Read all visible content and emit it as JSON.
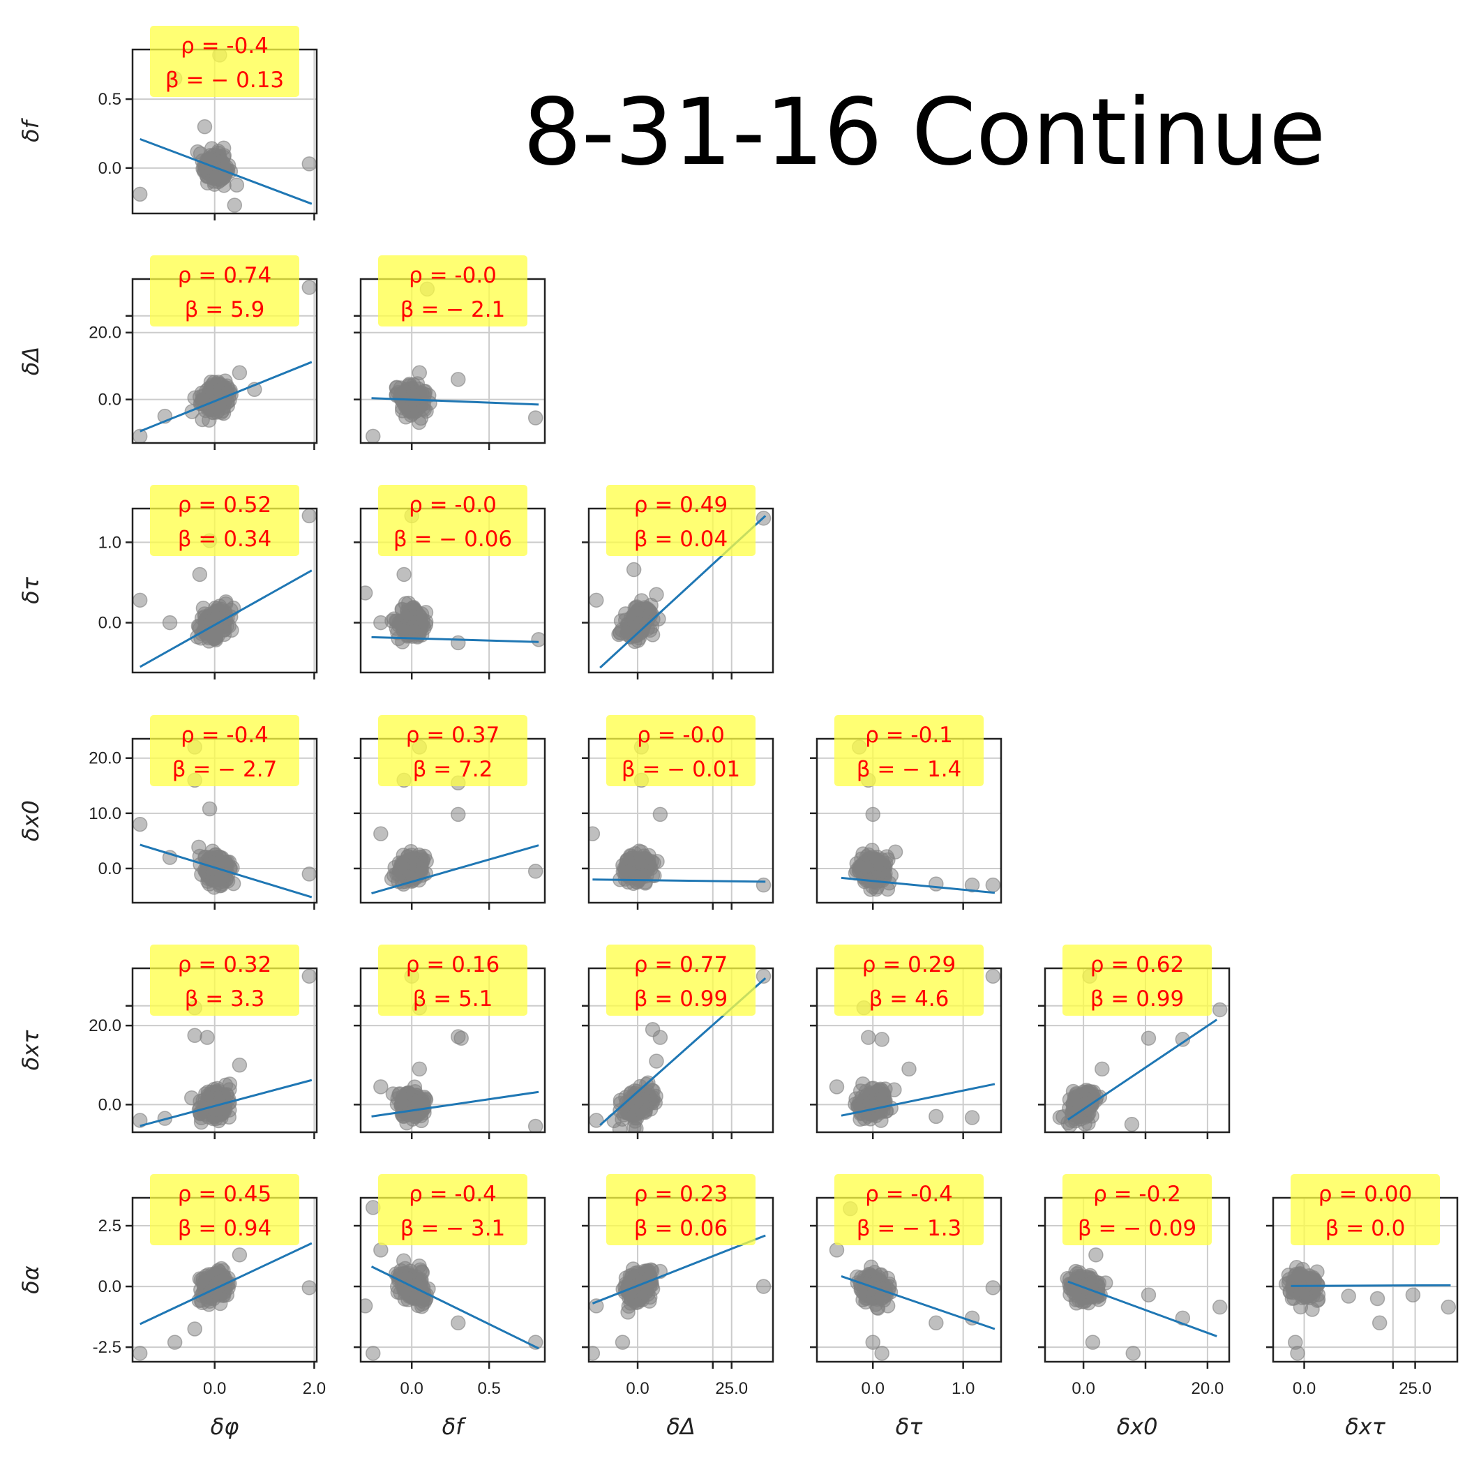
{
  "title": "8-31-16 Continue",
  "chart_data": {
    "type": "scatter",
    "title": "8-31-16 Continue",
    "variables": [
      "δφ",
      "δf",
      "δΔ",
      "δτ",
      "δx0",
      "δxτ",
      "δα"
    ],
    "colors": {
      "points": "#808080",
      "fit_line": "#1f77b4",
      "annotation_bg": "#ffff44",
      "annotation_text": "#ff0000",
      "grid": "#cccccc"
    },
    "grid": true,
    "axes": [
      {
        "name": "δφ",
        "label": "δφ",
        "range": [
          -1.65,
          2.05
        ],
        "ticks": [
          0.0,
          2.0
        ],
        "tick_labels": [
          "0.0",
          "2.0"
        ]
      },
      {
        "name": "δf",
        "label": "δf",
        "range": [
          -0.33,
          0.86
        ],
        "ticks": [
          0.0,
          0.5
        ],
        "tick_labels": [
          "0.0",
          "0.5"
        ]
      },
      {
        "name": "δΔ",
        "label": "δΔ",
        "range": [
          -13.0,
          36.0
        ],
        "ticks": [
          0.0,
          20.0,
          25.0
        ],
        "tick_labels": [
          "0.0",
          "20.0",
          "25.0"
        ]
      },
      {
        "name": "δτ",
        "label": "δτ",
        "range": [
          -0.62,
          1.42
        ],
        "ticks": [
          0.0,
          1.0
        ],
        "tick_labels": [
          "0.0",
          "1.0"
        ]
      },
      {
        "name": "δx0",
        "label": "δx0",
        "range": [
          -6.2,
          23.5
        ],
        "ticks": [
          0.0,
          10.0,
          20.0
        ],
        "tick_labels": [
          "0.0",
          "10.0",
          "20.0"
        ]
      },
      {
        "name": "δxτ",
        "label": "δxτ",
        "range": [
          -7.0,
          34.5
        ],
        "ticks": [
          0.0,
          20.0,
          25.0
        ],
        "tick_labels": [
          "0.0",
          "20.0",
          "25.0"
        ]
      },
      {
        "name": "δα",
        "label": "δα",
        "range": [
          -3.1,
          3.65
        ],
        "ticks": [
          -2.5,
          0.0,
          2.5
        ],
        "tick_labels": [
          "-2.5",
          "0.0",
          "2.5"
        ]
      }
    ],
    "y_tick_labels": {
      "δf": [
        "0.0",
        "0.5"
      ],
      "δΔ": [
        "0.0",
        "20.0"
      ],
      "δτ": [
        "0.0",
        "1.0"
      ],
      "δx0": [
        "0.0",
        "10.0",
        "20.0"
      ],
      "δxτ": [
        "0.0",
        "20.0"
      ],
      "δα": [
        "-2.5",
        "0.0",
        "2.5"
      ]
    },
    "x_tick_labels": {
      "δφ": [
        "0.0",
        "2.0"
      ],
      "δf": [
        "0.0",
        "0.5"
      ],
      "δΔ": [
        "0.0",
        "25.0"
      ],
      "δτ": [
        "0.0",
        "1.0"
      ],
      "δx0": [
        "0.0",
        "20.0"
      ],
      "δxτ": [
        "0.0",
        "25.0"
      ]
    },
    "panels": [
      {
        "x": "δφ",
        "y": "δf",
        "rho": "-0.4",
        "beta": "-0.13",
        "fit": [
          [
            -1.5,
            0.21
          ],
          [
            1.95,
            -0.26
          ]
        ],
        "outliers": [
          [
            -1.5,
            -0.19
          ],
          [
            1.9,
            0.03
          ],
          [
            -0.8,
            0.65
          ],
          [
            0.1,
            0.82
          ],
          [
            0.4,
            -0.27
          ],
          [
            -0.2,
            0.3
          ]
        ]
      },
      {
        "x": "δφ",
        "y": "δΔ",
        "rho": "0.74",
        "beta": "5.9",
        "fit": [
          [
            -1.5,
            -9.5
          ],
          [
            1.95,
            11.2
          ]
        ],
        "outliers": [
          [
            1.9,
            33.5
          ],
          [
            -1.5,
            -11
          ],
          [
            -1.0,
            -5
          ],
          [
            0.5,
            8
          ],
          [
            0.8,
            3
          ]
        ]
      },
      {
        "x": "δf",
        "y": "δΔ",
        "rho": "-0.0",
        "beta": "-2.1",
        "fit": [
          [
            -0.26,
            0.4
          ],
          [
            0.82,
            -1.5
          ]
        ],
        "outliers": [
          [
            -0.25,
            -11
          ],
          [
            0.8,
            -5.5
          ],
          [
            0.1,
            33
          ],
          [
            0.3,
            6
          ],
          [
            0.05,
            8
          ]
        ]
      },
      {
        "x": "δφ",
        "y": "δτ",
        "rho": "0.52",
        "beta": "0.34",
        "fit": [
          [
            -1.5,
            -0.55
          ],
          [
            1.95,
            0.65
          ]
        ],
        "outliers": [
          [
            1.9,
            1.33
          ],
          [
            -1.5,
            0.28
          ],
          [
            -0.9,
            0.0
          ],
          [
            -0.1,
            1.02
          ],
          [
            -0.3,
            0.6
          ]
        ]
      },
      {
        "x": "δf",
        "y": "δτ",
        "rho": "-0.0",
        "beta": "-0.06",
        "fit": [
          [
            -0.26,
            -0.18
          ],
          [
            0.82,
            -0.24
          ]
        ],
        "outliers": [
          [
            0.82,
            -0.21
          ],
          [
            0.0,
            1.33
          ],
          [
            -0.3,
            0.37
          ],
          [
            -0.2,
            0.0
          ],
          [
            0.3,
            -0.25
          ],
          [
            -0.05,
            0.6
          ]
        ]
      },
      {
        "x": "δΔ",
        "y": "δτ",
        "rho": "0.49",
        "beta": "0.04",
        "fit": [
          [
            -10,
            -0.56
          ],
          [
            34,
            1.33
          ]
        ],
        "outliers": [
          [
            33.5,
            1.3
          ],
          [
            -11,
            0.28
          ],
          [
            -1,
            0.66
          ],
          [
            4,
            -0.15
          ],
          [
            5,
            0.35
          ]
        ]
      },
      {
        "x": "δφ",
        "y": "δx0",
        "rho": "-0.4",
        "beta": "-2.7",
        "fit": [
          [
            -1.5,
            4.3
          ],
          [
            1.95,
            -5.2
          ]
        ],
        "outliers": [
          [
            -1.5,
            8
          ],
          [
            1.9,
            -1
          ],
          [
            -0.4,
            22
          ],
          [
            -0.4,
            16
          ],
          [
            -0.1,
            10.8
          ],
          [
            -0.9,
            2
          ]
        ]
      },
      {
        "x": "δf",
        "y": "δx0",
        "rho": "0.37",
        "beta": "7.2",
        "fit": [
          [
            -0.26,
            -4.5
          ],
          [
            0.82,
            4.2
          ]
        ],
        "outliers": [
          [
            0.05,
            22
          ],
          [
            -0.05,
            16
          ],
          [
            0.3,
            15.5
          ],
          [
            0.3,
            9.8
          ],
          [
            -0.2,
            6.3
          ],
          [
            0.8,
            -0.5
          ]
        ]
      },
      {
        "x": "δΔ",
        "y": "δx0",
        "rho": "-0.0",
        "beta": "-0.01",
        "fit": [
          [
            -12,
            -2.0
          ],
          [
            34,
            -2.4
          ]
        ],
        "outliers": [
          [
            -12,
            6.3
          ],
          [
            6,
            9.8
          ],
          [
            1,
            22
          ],
          [
            1,
            16
          ],
          [
            33.5,
            -3
          ],
          [
            1,
            3
          ]
        ]
      },
      {
        "x": "δτ",
        "y": "δx0",
        "rho": "-0.1",
        "beta": "-1.4",
        "fit": [
          [
            -0.35,
            -1.7
          ],
          [
            1.35,
            -4.4
          ]
        ],
        "outliers": [
          [
            -0.15,
            22
          ],
          [
            -0.05,
            16
          ],
          [
            0.0,
            9.8
          ],
          [
            0.25,
            3
          ],
          [
            1.1,
            -3
          ],
          [
            1.33,
            -3
          ],
          [
            0.7,
            -2.8
          ]
        ]
      },
      {
        "x": "δφ",
        "y": "δxτ",
        "rho": "0.32",
        "beta": "3.3",
        "fit": [
          [
            -1.5,
            -5.4
          ],
          [
            1.95,
            6.2
          ]
        ],
        "outliers": [
          [
            1.9,
            32.5
          ],
          [
            -0.4,
            24.5
          ],
          [
            -0.4,
            17.5
          ],
          [
            -0.15,
            17
          ],
          [
            0.5,
            10
          ],
          [
            -1.5,
            -4
          ],
          [
            -1.0,
            -3.5
          ]
        ]
      },
      {
        "x": "δf",
        "y": "δxτ",
        "rho": "0.16",
        "beta": "5.1",
        "fit": [
          [
            -0.26,
            -3.0
          ],
          [
            0.82,
            3.2
          ]
        ],
        "outliers": [
          [
            0.0,
            32.5
          ],
          [
            0.05,
            24.5
          ],
          [
            0.3,
            17.2
          ],
          [
            0.32,
            16.8
          ],
          [
            -0.2,
            4.5
          ],
          [
            0.8,
            -5.5
          ],
          [
            0.05,
            9
          ]
        ]
      },
      {
        "x": "δΔ",
        "y": "δxτ",
        "rho": "0.77",
        "beta": "0.99",
        "fit": [
          [
            -10,
            -5.2
          ],
          [
            34,
            32
          ]
        ],
        "outliers": [
          [
            33.5,
            32.5
          ],
          [
            -11,
            -4
          ],
          [
            4,
            19
          ],
          [
            5,
            11
          ],
          [
            6,
            17
          ]
        ]
      },
      {
        "x": "δτ",
        "y": "δxτ",
        "rho": "0.29",
        "beta": "4.6",
        "fit": [
          [
            -0.35,
            -2.8
          ],
          [
            1.35,
            5.2
          ]
        ],
        "outliers": [
          [
            1.33,
            32.5
          ],
          [
            -0.1,
            24.5
          ],
          [
            -0.05,
            17
          ],
          [
            0.1,
            16.5
          ],
          [
            0.4,
            9
          ],
          [
            1.1,
            -3.3
          ],
          [
            0.7,
            -3
          ],
          [
            -0.4,
            4.5
          ]
        ]
      },
      {
        "x": "δx0",
        "y": "δxτ",
        "rho": "0.62",
        "beta": "0.99",
        "fit": [
          [
            -2.5,
            -3.8
          ],
          [
            21.5,
            21.5
          ]
        ],
        "outliers": [
          [
            22,
            24
          ],
          [
            16,
            16.5
          ],
          [
            10.5,
            16.8
          ],
          [
            1,
            32.5
          ],
          [
            7.8,
            -5
          ],
          [
            3,
            9
          ]
        ]
      },
      {
        "x": "δφ",
        "y": "δα",
        "rho": "0.45",
        "beta": "0.94",
        "fit": [
          [
            -1.5,
            -1.55
          ],
          [
            1.95,
            1.78
          ]
        ],
        "outliers": [
          [
            1.9,
            -0.05
          ],
          [
            -1.5,
            -2.75
          ],
          [
            -0.8,
            -2.3
          ],
          [
            -0.4,
            -1.75
          ],
          [
            0.5,
            1.3
          ]
        ]
      },
      {
        "x": "δf",
        "y": "δα",
        "rho": "-0.4",
        "beta": "-3.1",
        "fit": [
          [
            -0.26,
            0.82
          ],
          [
            0.82,
            -2.55
          ]
        ],
        "outliers": [
          [
            0.8,
            -2.3
          ],
          [
            -0.25,
            3.25
          ],
          [
            -0.25,
            -2.75
          ],
          [
            -0.3,
            -0.8
          ],
          [
            0.3,
            -1.5
          ],
          [
            -0.2,
            1.5
          ]
        ]
      },
      {
        "x": "δΔ",
        "y": "δα",
        "rho": "0.23",
        "beta": "0.06",
        "fit": [
          [
            -12,
            -0.7
          ],
          [
            34,
            2.1
          ]
        ],
        "outliers": [
          [
            -12,
            -2.75
          ],
          [
            33.5,
            0.0
          ],
          [
            -4,
            -2.3
          ],
          [
            -11,
            -0.8
          ],
          [
            4,
            -0.1
          ]
        ]
      },
      {
        "x": "δτ",
        "y": "δα",
        "rho": "-0.4",
        "beta": "-1.3",
        "fit": [
          [
            -0.35,
            0.42
          ],
          [
            1.35,
            -1.75
          ]
        ],
        "outliers": [
          [
            1.33,
            -0.05
          ],
          [
            -0.25,
            3.2
          ],
          [
            0.1,
            -2.75
          ],
          [
            0.0,
            -2.3
          ],
          [
            1.1,
            -1.3
          ],
          [
            0.7,
            -1.5
          ],
          [
            -0.4,
            1.5
          ]
        ]
      },
      {
        "x": "δx0",
        "y": "δα",
        "rho": "-0.2",
        "beta": "-0.09",
        "fit": [
          [
            -2.5,
            0.2
          ],
          [
            21.5,
            -2.05
          ]
        ],
        "outliers": [
          [
            22,
            -0.85
          ],
          [
            8,
            -2.75
          ],
          [
            10.5,
            -0.35
          ],
          [
            16,
            -1.3
          ],
          [
            1.5,
            -2.3
          ],
          [
            2,
            1.3
          ]
        ]
      },
      {
        "x": "δxτ",
        "y": "δα",
        "rho": "0.00",
        "beta": "0.0",
        "fit": [
          [
            -3,
            0.02
          ],
          [
            33,
            0.05
          ]
        ],
        "outliers": [
          [
            32.5,
            -0.85
          ],
          [
            -2,
            -2.3
          ],
          [
            -1.5,
            -2.75
          ],
          [
            17,
            -1.5
          ],
          [
            24.5,
            -0.35
          ],
          [
            16.5,
            -0.5
          ],
          [
            10,
            -0.4
          ]
        ]
      }
    ]
  }
}
